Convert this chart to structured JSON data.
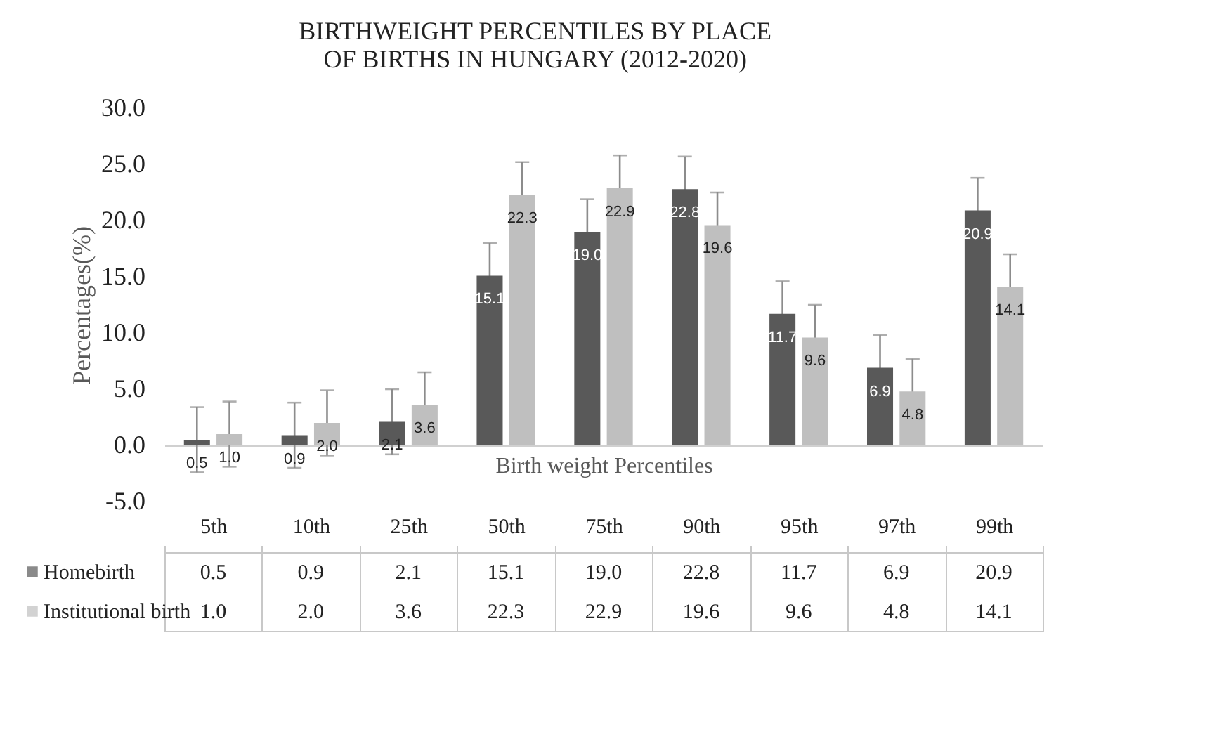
{
  "chart_data": {
    "type": "bar",
    "title": "BIRTHWEIGHT PERCENTILES BY PLACE OF BIRTHS IN HUNGARY (2012-2020)",
    "xlabel": "Birth weight Percentiles",
    "ylabel": "Percentages(%)",
    "categories": [
      "5th",
      "10th",
      "25th",
      "50th",
      "75th",
      "90th",
      "95th",
      "97th",
      "99th"
    ],
    "series": [
      {
        "name": "Homebirth",
        "color": "#595959",
        "values": [
          0.5,
          0.9,
          2.1,
          15.1,
          19.0,
          22.8,
          11.7,
          6.9,
          20.9
        ],
        "value_labels": [
          "0.5",
          "0.9",
          "2.1",
          "15.1",
          "19.0",
          "22.8",
          "11.7",
          "6.9",
          "20.9"
        ],
        "errors": [
          2.9,
          2.9,
          2.9,
          2.9,
          2.9,
          2.9,
          2.9,
          2.9,
          2.9
        ]
      },
      {
        "name": "Institutional birth",
        "color": "#bfbfbf",
        "values": [
          1.0,
          2.0,
          3.6,
          22.3,
          22.9,
          19.6,
          9.6,
          4.8,
          14.1
        ],
        "value_labels": [
          "1.0",
          "2.0",
          "3.6",
          "22.3",
          "22.9",
          "19.6",
          "9.6",
          "4.8",
          "14.1"
        ],
        "errors": [
          2.9,
          2.9,
          2.9,
          2.9,
          2.9,
          2.9,
          2.9,
          2.9,
          2.9
        ]
      }
    ],
    "ylim": [
      -5,
      30
    ],
    "yticks": [
      {
        "value": -5,
        "label": "-5.0"
      },
      {
        "value": 0,
        "label": "0.0"
      },
      {
        "value": 5,
        "label": "5.0"
      },
      {
        "value": 10,
        "label": "10.0"
      },
      {
        "value": 15,
        "label": "15.0"
      },
      {
        "value": 20,
        "label": "20.0"
      },
      {
        "value": 25,
        "label": "25.0"
      },
      {
        "value": 30,
        "label": "30.0"
      }
    ],
    "legend": "bottom"
  }
}
